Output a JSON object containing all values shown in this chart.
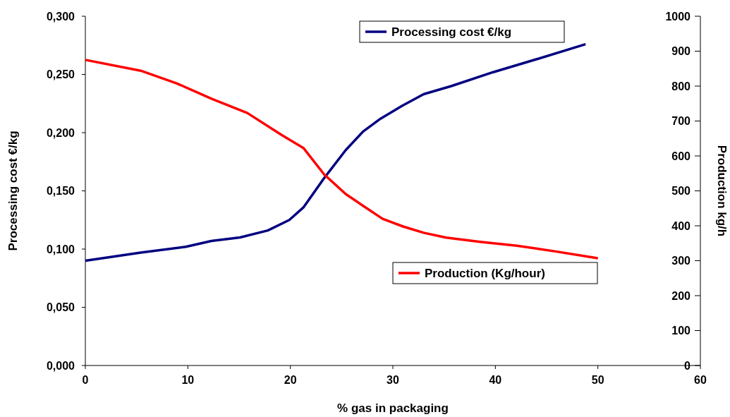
{
  "chart_data": {
    "type": "line",
    "xlabel": "% gas in packaging",
    "ylabel": "Processing cost €/kg",
    "y2label": "Production kg/h",
    "xlim": [
      0,
      60
    ],
    "xticks": [
      0,
      10,
      20,
      30,
      40,
      50,
      60
    ],
    "ylim": [
      0,
      0.3
    ],
    "yticks": [
      {
        "value": 0,
        "label": "0,000"
      },
      {
        "value": 0.05,
        "label": "0,050"
      },
      {
        "value": 0.1,
        "label": "0,100"
      },
      {
        "value": 0.15,
        "label": "0,150"
      },
      {
        "value": 0.2,
        "label": "0,200"
      },
      {
        "value": 0.25,
        "label": "0,250"
      },
      {
        "value": 0.3,
        "label": "0,300"
      }
    ],
    "y2lim": [
      0,
      1000
    ],
    "y2ticks": [
      0,
      100,
      200,
      300,
      400,
      500,
      600,
      700,
      800,
      900,
      1000
    ],
    "legend": "right",
    "grid": false,
    "series": [
      {
        "name": "Processing cost €/kg",
        "color": "#000080",
        "x": [
          0,
          5.4,
          9.8,
          12.3,
          15.1,
          17.8,
          19.9,
          21.3,
          23.3,
          25.4,
          27.1,
          28.8,
          30.9,
          33,
          35.7,
          39.8,
          44,
          48.8
        ],
        "values": [
          0.09,
          0.097,
          0.102,
          0.107,
          0.11,
          0.116,
          0.125,
          0.136,
          0.161,
          0.185,
          0.201,
          0.212,
          0.223,
          0.233,
          0.24,
          0.252,
          0.263,
          0.276
        ]
      },
      {
        "name": "Production (Kg/hour)",
        "color": "#ff0000",
        "axis": "y2",
        "x": [
          0,
          5.4,
          8.9,
          12.3,
          15.8,
          19.2,
          21.3,
          23.3,
          25.4,
          27.1,
          29,
          31,
          33,
          35.2,
          38.5,
          42.1,
          46,
          50
        ],
        "values": [
          875,
          844,
          808,
          764,
          723,
          659,
          622,
          547,
          491,
          457,
          420,
          398,
          380,
          366,
          354,
          343,
          326,
          307
        ]
      }
    ]
  }
}
